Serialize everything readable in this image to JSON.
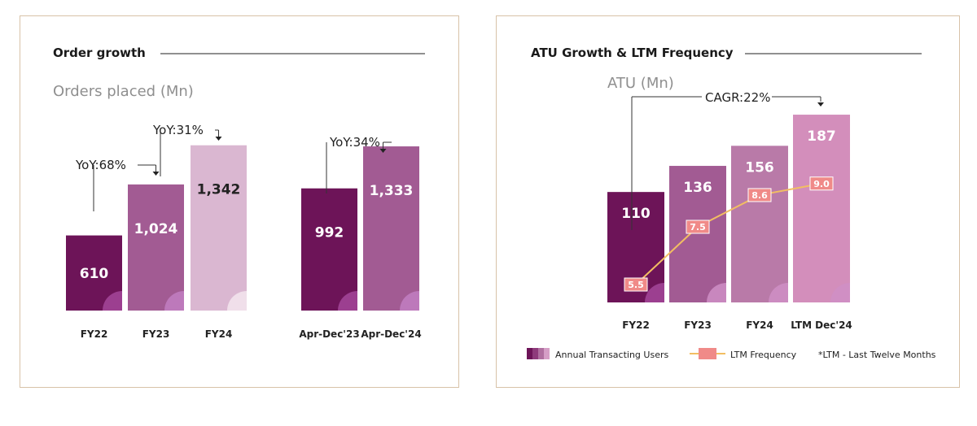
{
  "colors": {
    "dark": "#6d1458",
    "mid": "#a25b93",
    "light": "#dab7d1",
    "ltm": "#d389b7",
    "line": "#f2be62",
    "marker": "#f08a88",
    "border": "#d8c2a8"
  },
  "order_panel": {
    "title": "Order growth",
    "subtitle": "Orders placed (Mn)",
    "yoy": [
      "YoY:68%",
      "YoY:31%",
      "YoY:34%"
    ]
  },
  "atu_panel": {
    "title": "ATU Growth & LTM Frequency",
    "subtitle": "ATU (Mn)",
    "cagr": "CAGR:22%",
    "legend": {
      "atu": "Annual Transacting Users",
      "freq": "LTM Frequency",
      "note": "*LTM - Last Twelve Months"
    }
  },
  "chart_data": [
    {
      "type": "bar",
      "title": "Order growth",
      "subtitle": "Orders placed (Mn)",
      "categories": [
        "FY22",
        "FY23",
        "FY24",
        "Apr-Dec'23",
        "Apr-Dec'24"
      ],
      "values": [
        610,
        1024,
        1342,
        992,
        1333
      ],
      "value_labels": [
        "610",
        "1,024",
        "1,342",
        "992",
        "1,333"
      ],
      "annotations": [
        "YoY:68%",
        "YoY:31%",
        "YoY:34%"
      ]
    },
    {
      "type": "bar",
      "title": "ATU Growth & LTM Frequency",
      "subtitle": "ATU (Mn)",
      "categories": [
        "FY22",
        "FY23",
        "FY24",
        "LTM Dec'24"
      ],
      "series": [
        {
          "name": "Annual Transacting Users",
          "values": [
            110,
            136,
            156,
            187
          ]
        },
        {
          "name": "LTM Frequency",
          "type": "line",
          "values": [
            5.5,
            7.5,
            8.6,
            9.0
          ],
          "labels": [
            "5.5",
            "7.5",
            "8.6",
            "9.0"
          ]
        }
      ],
      "annotations": [
        "CAGR:22%"
      ],
      "legend": "bottom"
    }
  ]
}
